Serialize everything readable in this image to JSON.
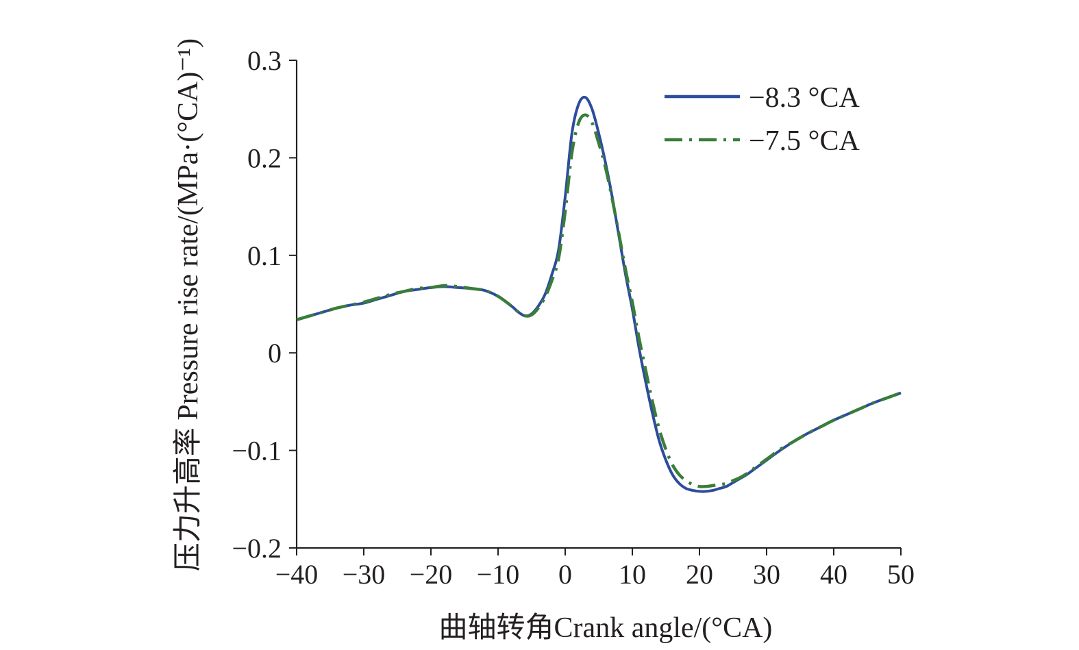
{
  "chart_data": {
    "type": "line",
    "xlabel": "曲轴转角Crank angle/(°CA)",
    "ylabel": "压力升高率 Pressure rise rate/(MPa·(°CA)⁻¹)",
    "xlim": [
      -40,
      50
    ],
    "ylim": [
      -0.2,
      0.3
    ],
    "xticks": [
      -40,
      -30,
      -20,
      -10,
      0,
      10,
      20,
      30,
      40,
      50
    ],
    "yticks": [
      -0.2,
      -0.1,
      0,
      0.1,
      0.2,
      0.3
    ],
    "xtick_labels": [
      "−40",
      "−30",
      "−20",
      "−10",
      "0",
      "10",
      "20",
      "30",
      "40",
      "50"
    ],
    "ytick_labels": [
      "−0.2",
      "−0.1",
      "0",
      "0.1",
      "0.2",
      "0.3"
    ],
    "grid": false,
    "legend_position": "top-right",
    "series": [
      {
        "name": "−8.3 °CA",
        "color": "#2e4c9c",
        "line_style": "solid",
        "x": [
          -40,
          -38,
          -36,
          -34,
          -32,
          -30,
          -28,
          -26,
          -24,
          -22,
          -20,
          -18,
          -16,
          -14,
          -12,
          -10,
          -8,
          -7,
          -6,
          -5,
          -4,
          -3,
          -2,
          -1,
          0,
          1,
          2,
          3,
          4,
          5,
          6,
          7,
          8,
          9,
          10,
          11,
          12,
          13,
          14,
          15,
          16,
          17,
          18,
          19,
          20,
          21,
          22,
          23,
          24,
          25,
          26,
          27,
          28,
          30,
          32,
          34,
          36,
          38,
          40,
          42,
          44,
          46,
          48,
          50
        ],
        "y": [
          0.034,
          0.038,
          0.042,
          0.046,
          0.049,
          0.051,
          0.055,
          0.059,
          0.063,
          0.065,
          0.067,
          0.068,
          0.067,
          0.066,
          0.064,
          0.058,
          0.048,
          0.042,
          0.038,
          0.04,
          0.048,
          0.06,
          0.08,
          0.105,
          0.16,
          0.225,
          0.255,
          0.262,
          0.25,
          0.225,
          0.195,
          0.16,
          0.12,
          0.08,
          0.045,
          0.005,
          -0.03,
          -0.062,
          -0.09,
          -0.11,
          -0.125,
          -0.134,
          -0.139,
          -0.141,
          -0.142,
          -0.142,
          -0.141,
          -0.139,
          -0.137,
          -0.133,
          -0.129,
          -0.125,
          -0.12,
          -0.11,
          -0.1,
          -0.091,
          -0.083,
          -0.076,
          -0.069,
          -0.063,
          -0.057,
          -0.051,
          -0.046,
          -0.041
        ]
      },
      {
        "name": "−7.5 °CA",
        "color": "#3a7d3a",
        "line_style": "dash-dot",
        "x": [
          -40,
          -38,
          -36,
          -34,
          -32,
          -30,
          -28,
          -26,
          -24,
          -22,
          -20,
          -18,
          -16,
          -14,
          -12,
          -10,
          -8,
          -7,
          -6,
          -5,
          -4,
          -3,
          -2,
          -1,
          0,
          1,
          2,
          3,
          4,
          5,
          6,
          7,
          8,
          9,
          10,
          11,
          12,
          13,
          14,
          15,
          16,
          17,
          18,
          19,
          20,
          21,
          22,
          23,
          24,
          25,
          26,
          27,
          28,
          30,
          32,
          34,
          36,
          38,
          40,
          42,
          44,
          46,
          48,
          50
        ],
        "y": [
          0.034,
          0.038,
          0.042,
          0.046,
          0.049,
          0.052,
          0.056,
          0.06,
          0.063,
          0.066,
          0.067,
          0.069,
          0.068,
          0.066,
          0.064,
          0.058,
          0.048,
          0.042,
          0.038,
          0.039,
          0.046,
          0.057,
          0.074,
          0.096,
          0.145,
          0.205,
          0.236,
          0.244,
          0.236,
          0.215,
          0.19,
          0.158,
          0.122,
          0.085,
          0.052,
          0.015,
          -0.018,
          -0.05,
          -0.078,
          -0.099,
          -0.115,
          -0.125,
          -0.131,
          -0.135,
          -0.137,
          -0.137,
          -0.136,
          -0.135,
          -0.134,
          -0.131,
          -0.128,
          -0.124,
          -0.119,
          -0.109,
          -0.099,
          -0.091,
          -0.083,
          -0.076,
          -0.069,
          -0.063,
          -0.057,
          -0.051,
          -0.046,
          -0.041
        ]
      }
    ]
  }
}
